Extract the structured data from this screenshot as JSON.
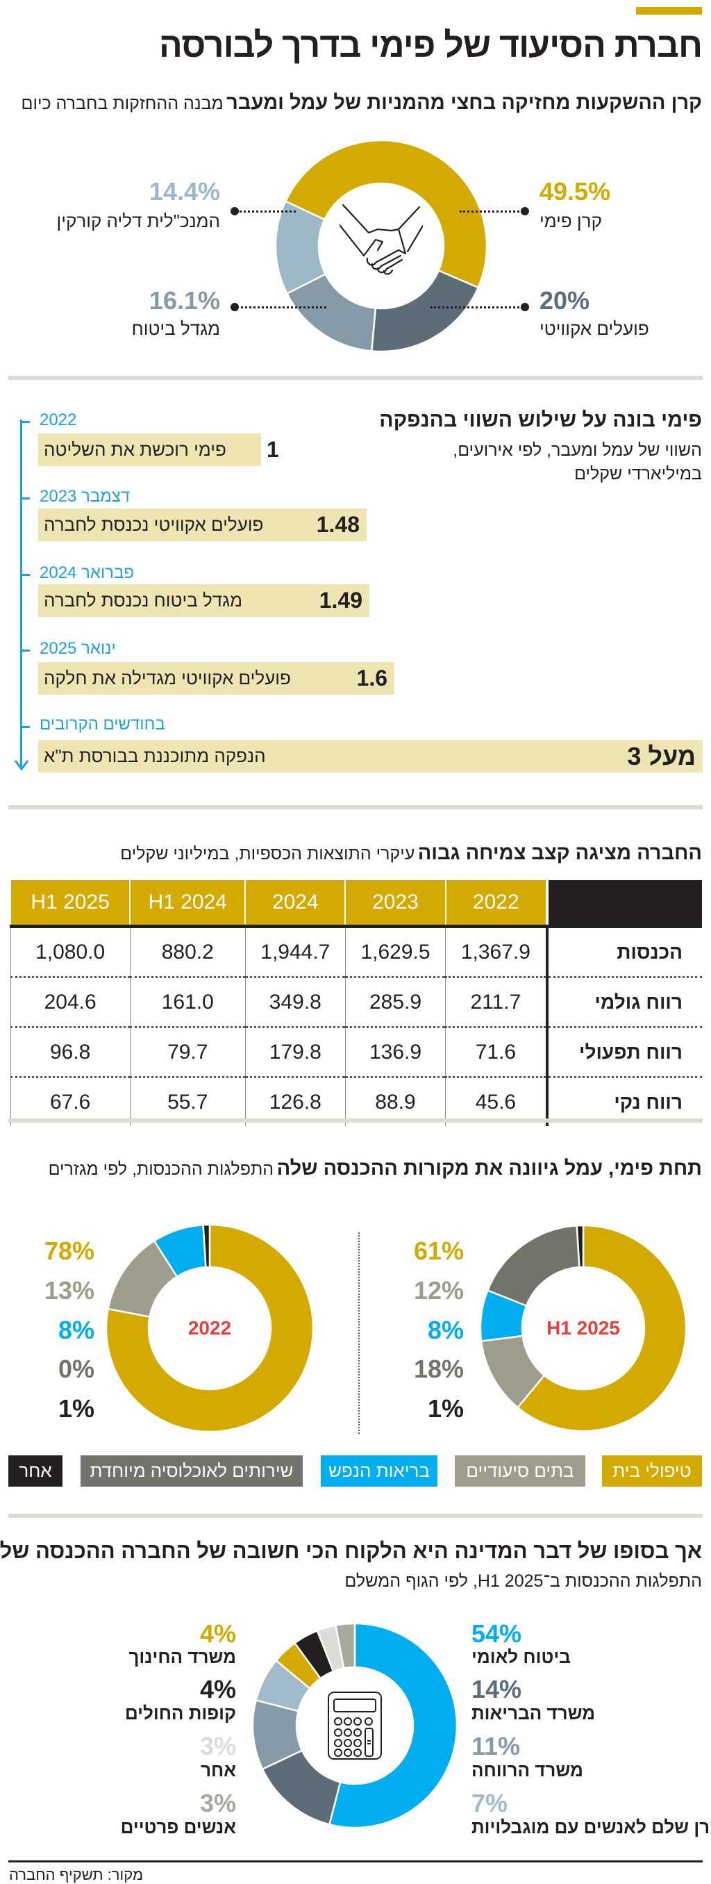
{
  "title": "חברת הסיעוד של פימי בדרך לבורסה",
  "colors": {
    "accent_yellow": "#d4aa00",
    "timeline_blue": "#1ba1e2",
    "box_fill": "#ede5b2",
    "center_label_red": "#e8403a"
  },
  "ownership": {
    "heading_bold": "קרן ההשקעות מחזיקה בחצי מהמניות של עמל ומעבר",
    "heading_light": "מבנה ההחזקות בחברה כיום",
    "center_icon": "handshake-icon"
  },
  "timeline": {
    "heading": "פימי בונה על שילוש השווי בהנפקה",
    "subtitle_line1": "השווי של עמל ומעבר, לפי אירועים,",
    "subtitle_line2": "במיליארדי שקלים",
    "items": [
      {
        "date": "2022",
        "event": "פימי רוכשת את השליטה",
        "value": "1"
      },
      {
        "date": "דצמבר 2023",
        "event": "פועלים אקוויטי נכנסת לחברה",
        "value": "1.48"
      },
      {
        "date": "פברואר 2024",
        "event": "מגדל ביטוח נכנסת לחברה",
        "value": "1.49"
      },
      {
        "date": "ינואר 2025",
        "event": "פועלים אקוויטי מגדילה את חלקה",
        "value": "1.6"
      },
      {
        "date": "בחודשים הקרובים",
        "event": "הנפקה מתוכננת בבורסת ת\"א",
        "value": "מעל 3"
      }
    ]
  },
  "financials": {
    "heading_bold": "החברה מציגה קצב צמיחה גבוה",
    "heading_light": "עיקרי התוצאות הכספיות, במיליוני שקלים"
  },
  "segments": {
    "heading_bold": "תחת פימי, עמל גיוונה את מקורות ההכנסה שלה",
    "heading_light": "התפלגות ההכנסות, לפי מגזרים"
  },
  "payers": {
    "heading": "אך בסופו של דבר המדינה היא הלקוח הכי חשובה של החברה ההכנסה שלה",
    "subtitle": "התפלגות ההכנסות ב־H1 2025, לפי הגוף המשלם",
    "center_icon": "calculator-icon"
  },
  "source": "מקור: תשקיף החברה",
  "chart_data": [
    {
      "type": "pie",
      "title": "מבנה ההחזקות בחברה כיום",
      "categories": [
        "קרן פימי",
        "פועלים אקוויטי",
        "מגדל ביטוח",
        "המנכ\"לית דליה קורקין"
      ],
      "values": [
        49.5,
        20,
        16.1,
        14.4
      ],
      "value_labels": [
        "49.5%",
        "20%",
        "16.1%",
        "14.4%"
      ],
      "colors": [
        "#d4aa00",
        "#5c6d78",
        "#8599a6",
        "#9db8c7"
      ],
      "donut": true
    },
    {
      "type": "table",
      "columns": [
        "",
        "2022",
        "2023",
        "2024",
        "H1 2024",
        "H1 2025"
      ],
      "rows": [
        {
          "label": "הכנסות",
          "values": [
            "1,367.9",
            "1,629.5",
            "1,944.7",
            "880.2",
            "1,080.0"
          ]
        },
        {
          "label": "רווח גולמי",
          "values": [
            "211.7",
            "285.9",
            "349.8",
            "161.0",
            "204.6"
          ]
        },
        {
          "label": "רווח תפעולי",
          "values": [
            "71.6",
            "136.9",
            "179.8",
            "79.7",
            "96.8"
          ]
        },
        {
          "label": "רווח נקי",
          "values": [
            "45.6",
            "88.9",
            "126.8",
            "55.7",
            "67.6"
          ]
        }
      ]
    },
    {
      "type": "pie",
      "title": "2022",
      "categories": [
        "טיפולי בית",
        "בתים סיעודיים",
        "בריאות הנפש",
        "שירותים לאוכלוסיה מיוחדת",
        "אחר"
      ],
      "values": [
        78,
        13,
        8,
        0,
        1
      ],
      "value_labels": [
        "78%",
        "13%",
        "8%",
        "0%",
        "1%"
      ],
      "colors": [
        "#d4aa00",
        "#9e9d8b",
        "#00aeef",
        "#72736b",
        "#231f20"
      ],
      "donut": true
    },
    {
      "type": "pie",
      "title": "H1 2025",
      "categories": [
        "טיפולי בית",
        "בתים סיעודיים",
        "בריאות הנפש",
        "שירותים לאוכלוסיה מיוחדת",
        "אחר"
      ],
      "values": [
        61,
        12,
        8,
        18,
        1
      ],
      "value_labels": [
        "61%",
        "12%",
        "8%",
        "18%",
        "1%"
      ],
      "colors": [
        "#d4aa00",
        "#9e9d8b",
        "#00aeef",
        "#72736b",
        "#231f20"
      ],
      "legend": "bottom",
      "donut": true
    },
    {
      "type": "pie",
      "title": "התפלגות ההכנסות ב־H1 2025, לפי הגוף המשלם",
      "categories": [
        "ביטוח לאומי",
        "משרד הבריאות",
        "משרד הרווחה",
        "קרן שלם לאנשים עם מוגבלויות",
        "משרד החינוך",
        "קופות החולים",
        "אחר",
        "אנשים פרטיים"
      ],
      "values": [
        54,
        14,
        11,
        7,
        4,
        4,
        3,
        3
      ],
      "value_labels": [
        "54%",
        "14%",
        "11%",
        "7%",
        "4%",
        "4%",
        "3%",
        "3%"
      ],
      "colors": [
        "#00aeef",
        "#5d6d78",
        "#8599a6",
        "#a0bccb",
        "#d4aa00",
        "#231f20",
        "#dcdcd8",
        "#aaa99f"
      ],
      "donut": true
    }
  ]
}
